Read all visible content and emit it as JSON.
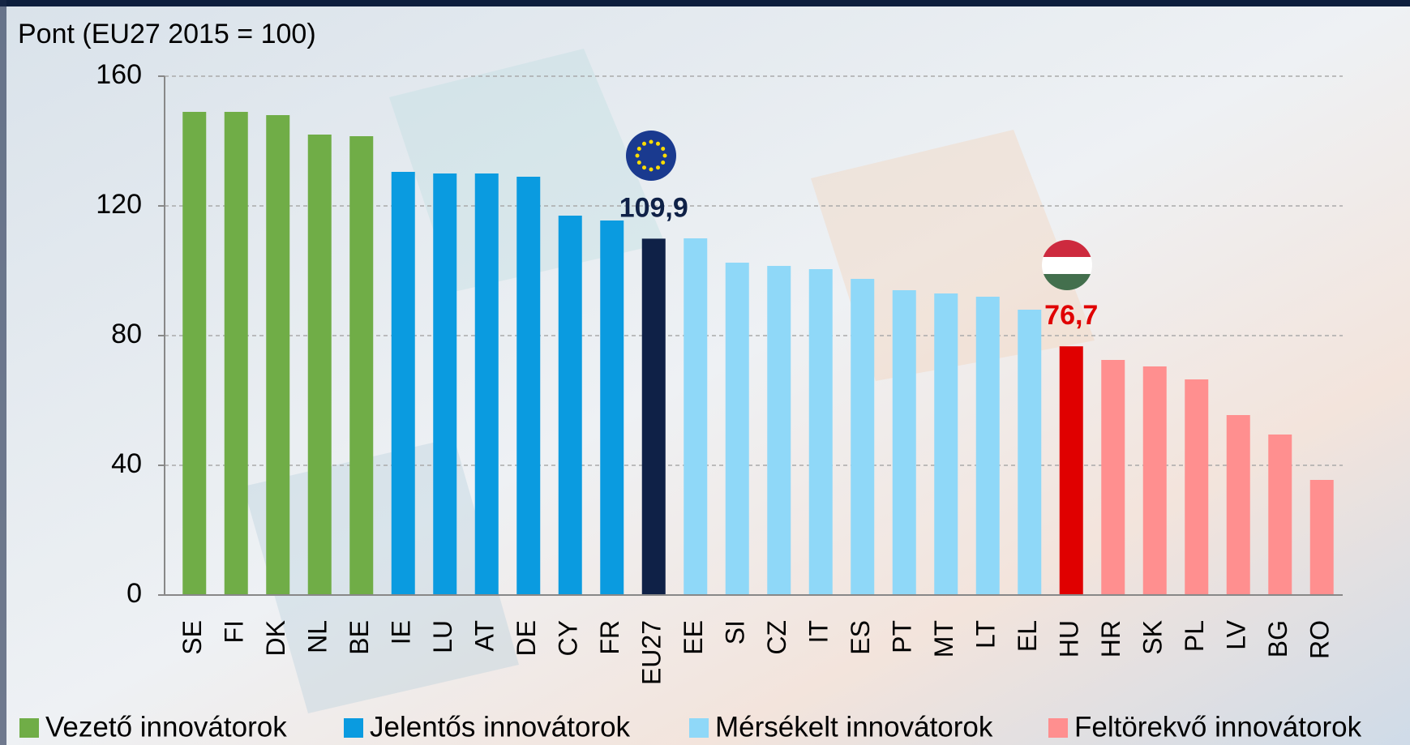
{
  "chart_data": {
    "type": "bar",
    "y_label": "Pont (EU27 2015 = 100)",
    "categories": [
      "SE",
      "FI",
      "DK",
      "NL",
      "BE",
      "IE",
      "LU",
      "AT",
      "DE",
      "CY",
      "FR",
      "EU27",
      "EE",
      "SI",
      "CZ",
      "IT",
      "ES",
      "PT",
      "MT",
      "LT",
      "EL",
      "HU",
      "HR",
      "SK",
      "PL",
      "LV",
      "BG",
      "RO"
    ],
    "values": [
      149,
      149,
      148,
      142,
      141.5,
      130.5,
      130,
      130,
      129,
      117,
      115.5,
      109.9,
      110,
      102.5,
      101.5,
      100.5,
      97.5,
      94,
      93,
      92,
      88,
      76.7,
      72.5,
      70.5,
      66.5,
      55.5,
      49.5,
      35.5
    ],
    "value_labels": [
      null,
      null,
      null,
      null,
      null,
      null,
      null,
      null,
      null,
      null,
      null,
      "109,9",
      null,
      null,
      null,
      null,
      null,
      null,
      null,
      null,
      null,
      "76,7",
      null,
      null,
      null,
      null,
      null,
      null
    ],
    "colors": [
      "#70ad47",
      "#70ad47",
      "#70ad47",
      "#70ad47",
      "#70ad47",
      "#0a9be0",
      "#0a9be0",
      "#0a9be0",
      "#0a9be0",
      "#0a9be0",
      "#0a9be0",
      "#0f2147",
      "#8fd8f8",
      "#8fd8f8",
      "#8fd8f8",
      "#8fd8f8",
      "#8fd8f8",
      "#8fd8f8",
      "#8fd8f8",
      "#8fd8f8",
      "#8fd8f8",
      "#e00000",
      "#ff8f8f",
      "#ff8f8f",
      "#ff8f8f",
      "#ff8f8f",
      "#ff8f8f",
      "#ff8f8f"
    ],
    "legend": [
      {
        "name": "Vezető innovátorok",
        "color": "#70ad47"
      },
      {
        "name": "Jelentős innovátorok",
        "color": "#0a9be0"
      },
      {
        "name": "Mérsékelt innovátorok",
        "color": "#8fd8f8"
      },
      {
        "name": "Feltörekvő innovátorok",
        "color": "#ff8f8f"
      }
    ],
    "ylim": [
      0,
      160
    ],
    "yticks": [
      0,
      40,
      80,
      120,
      160
    ],
    "grid": true
  }
}
